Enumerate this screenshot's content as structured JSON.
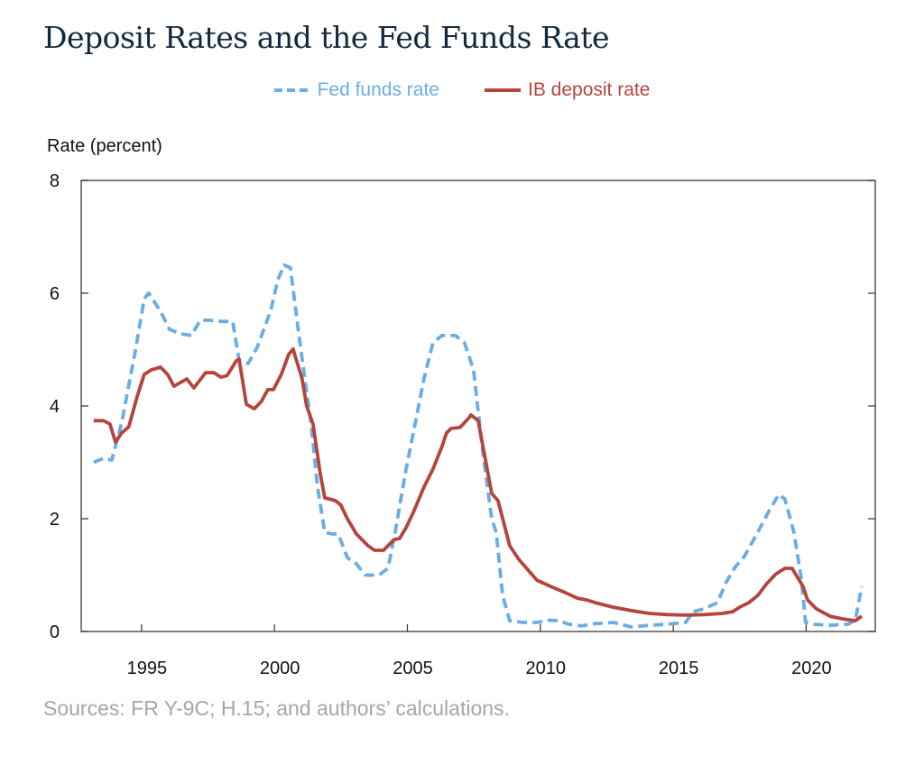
{
  "title": "Deposit Rates and the Fed Funds Rate",
  "source": "Sources: FR Y-9C; H.15; and authors’ calculations.",
  "chart_data": {
    "type": "line",
    "title": "Deposit Rates and the Fed Funds Rate",
    "ylabel": "Rate (percent)",
    "xlabel": "",
    "xlim": [
      1992.73,
      2022.6
    ],
    "ylim": [
      0,
      8
    ],
    "xticks": [
      1995,
      2000,
      2005,
      2010,
      2015,
      2020
    ],
    "yticks": [
      0,
      2,
      4,
      6,
      8
    ],
    "grid": false,
    "legend": "top-center",
    "series": [
      {
        "name": "Fed funds rate",
        "color": "#6aade4",
        "style": "dashed",
        "x": [
          1993.2,
          1993.57,
          1993.88,
          1994.25,
          1994.76,
          1995.1,
          1995.27,
          1995.71,
          1996.05,
          1996.46,
          1996.87,
          1997.21,
          1997.55,
          1998.09,
          1998.43,
          1998.67,
          1999.01,
          1999.35,
          1999.85,
          2000.13,
          2000.36,
          2000.6,
          2000.87,
          2001.14,
          2001.38,
          2001.62,
          2001.89,
          2002.16,
          2002.4,
          2002.74,
          2003.08,
          2003.42,
          2003.93,
          2004.27,
          2004.54,
          2004.95,
          2005.29,
          2005.62,
          2005.96,
          2006.3,
          2006.81,
          2007.15,
          2007.49,
          2007.83,
          2008.17,
          2008.34,
          2008.58,
          2008.85,
          2009.36,
          2009.87,
          2010.38,
          2010.72,
          2011.06,
          2011.56,
          2012.07,
          2012.75,
          2013.43,
          2014.11,
          2014.79,
          2015.47,
          2015.74,
          2016.15,
          2016.66,
          2017.0,
          2017.34,
          2017.67,
          2018.18,
          2018.63,
          2018.97,
          2019.2,
          2019.54,
          2019.81,
          2019.98,
          2020.22,
          2020.9,
          2021.58,
          2021.85,
          2022.09
        ],
        "y": [
          3.0,
          3.07,
          3.04,
          3.7,
          4.96,
          5.9,
          6.0,
          5.68,
          5.36,
          5.28,
          5.25,
          5.52,
          5.52,
          5.5,
          5.5,
          4.8,
          4.75,
          5.04,
          5.68,
          6.24,
          6.5,
          6.45,
          5.44,
          4.48,
          3.68,
          2.56,
          1.76,
          1.73,
          1.73,
          1.31,
          1.2,
          1.0,
          1.0,
          1.12,
          1.76,
          2.88,
          3.68,
          4.48,
          5.12,
          5.25,
          5.25,
          5.12,
          4.64,
          3.2,
          2.0,
          1.76,
          0.64,
          0.19,
          0.16,
          0.16,
          0.2,
          0.19,
          0.13,
          0.1,
          0.14,
          0.16,
          0.08,
          0.11,
          0.13,
          0.16,
          0.35,
          0.4,
          0.51,
          0.88,
          1.15,
          1.33,
          1.76,
          2.16,
          2.43,
          2.35,
          1.76,
          0.96,
          0.16,
          0.13,
          0.11,
          0.13,
          0.2,
          0.8
        ]
      },
      {
        "name": "IB deposit rate",
        "color": "#b5443d",
        "style": "solid",
        "x": [
          1993.2,
          1993.57,
          1993.81,
          1994.02,
          1994.25,
          1994.52,
          1994.83,
          1995.1,
          1995.37,
          1995.71,
          1995.98,
          1996.22,
          1996.7,
          1996.97,
          1997.41,
          1997.72,
          1997.99,
          1998.22,
          1998.56,
          1998.67,
          1998.94,
          1999.24,
          1999.51,
          1999.75,
          1999.96,
          2000.26,
          2000.53,
          2000.7,
          2001.04,
          2001.21,
          2001.45,
          2001.72,
          2001.89,
          2002.3,
          2002.5,
          2002.74,
          2003.08,
          2003.52,
          2003.76,
          2004.1,
          2004.5,
          2004.71,
          2004.95,
          2005.22,
          2005.62,
          2005.96,
          2006.3,
          2006.47,
          2006.64,
          2006.98,
          2007.32,
          2007.39,
          2007.66,
          2008.0,
          2008.17,
          2008.41,
          2008.85,
          2009.19,
          2009.87,
          2010.38,
          2010.89,
          2011.4,
          2011.74,
          2012.07,
          2012.75,
          2013.43,
          2014.11,
          2014.79,
          2015.47,
          2016.15,
          2016.83,
          2017.23,
          2017.5,
          2017.84,
          2018.18,
          2018.52,
          2018.86,
          2019.2,
          2019.47,
          2019.88,
          2020.05,
          2020.39,
          2020.9,
          2021.42,
          2021.85,
          2022.09
        ],
        "y": [
          3.74,
          3.74,
          3.68,
          3.36,
          3.52,
          3.63,
          4.16,
          4.56,
          4.64,
          4.69,
          4.56,
          4.35,
          4.48,
          4.32,
          4.59,
          4.59,
          4.51,
          4.54,
          4.8,
          4.83,
          4.03,
          3.95,
          4.08,
          4.29,
          4.29,
          4.56,
          4.91,
          5.01,
          4.48,
          4.0,
          3.68,
          2.8,
          2.37,
          2.32,
          2.24,
          2.0,
          1.73,
          1.52,
          1.44,
          1.44,
          1.63,
          1.65,
          1.84,
          2.11,
          2.56,
          2.88,
          3.28,
          3.52,
          3.6,
          3.62,
          3.79,
          3.84,
          3.74,
          2.88,
          2.45,
          2.32,
          1.52,
          1.28,
          0.91,
          0.8,
          0.7,
          0.59,
          0.56,
          0.51,
          0.43,
          0.37,
          0.32,
          0.3,
          0.29,
          0.3,
          0.32,
          0.35,
          0.43,
          0.51,
          0.64,
          0.85,
          1.02,
          1.12,
          1.12,
          0.8,
          0.56,
          0.4,
          0.27,
          0.22,
          0.19,
          0.27
        ]
      }
    ]
  }
}
